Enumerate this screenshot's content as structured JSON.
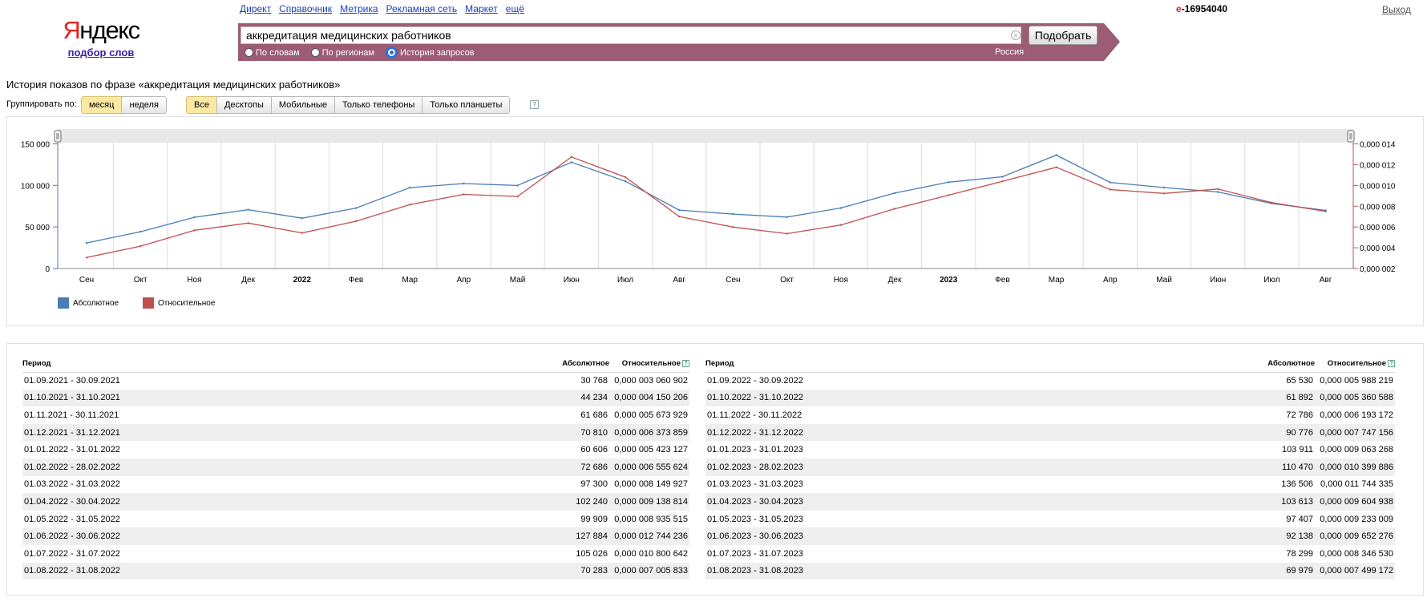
{
  "header": {
    "logo_text": "Яндекс",
    "logo_sub": "подбор слов",
    "nav": [
      "Директ",
      "Справочник",
      "Метрика",
      "Рекламная сеть",
      "Маркет",
      "ещё"
    ],
    "account_first": "е",
    "account_rest": "-16954040",
    "logout": "Выход"
  },
  "search": {
    "query": "аккредитация медицинских работников",
    "button": "Подобрать",
    "modes": [
      "По словам",
      "По регионам",
      "История запросов"
    ],
    "active_mode": "История запросов",
    "region": "Россия",
    "bar_color": "#9b5c74"
  },
  "title": "История показов по фразе «аккредитация медицинских работников»",
  "grouping": {
    "label": "Группировать по:",
    "period_buttons": [
      "месяц",
      "неделя"
    ],
    "active_period": "месяц",
    "device_buttons": [
      "Все",
      "Десктопы",
      "Мобильные",
      "Только телефоны",
      "Только планшеты"
    ],
    "active_device": "Все"
  },
  "chart_data": {
    "type": "line",
    "x": [
      "Сен",
      "Окт",
      "Ноя",
      "Дек",
      "2022",
      "Фев",
      "Мар",
      "Апр",
      "Май",
      "Июн",
      "Июл",
      "Авг",
      "Сен",
      "Окт",
      "Ноя",
      "Дек",
      "2023",
      "Фев",
      "Мар",
      "Апр",
      "Май",
      "Июн",
      "Июл",
      "Авг"
    ],
    "bold_ticks": [
      "2022",
      "2023"
    ],
    "series": [
      {
        "name": "Абсолютное",
        "axis": "left",
        "color": "#4a7bb5",
        "values": [
          30768,
          44234,
          61686,
          70810,
          60606,
          72686,
          97300,
          102240,
          99909,
          127884,
          105026,
          70283,
          65530,
          61892,
          72786,
          90776,
          103911,
          110470,
          136506,
          103613,
          97407,
          92138,
          78299,
          69979
        ]
      },
      {
        "name": "Относительное",
        "axis": "right",
        "color": "#c0504d",
        "values": [
          3.060902e-06,
          4.150206e-06,
          5.673929e-06,
          6.373859e-06,
          5.423127e-06,
          6.555624e-06,
          8.149927e-06,
          9.138814e-06,
          8.935515e-06,
          1.2744236e-05,
          1.0800642e-05,
          7.005833e-06,
          5.988219e-06,
          5.360588e-06,
          6.193172e-06,
          7.747156e-06,
          9.063268e-06,
          1.0399886e-05,
          1.1744335e-05,
          9.604938e-06,
          9.233009e-06,
          9.652276e-06,
          8.34653e-06,
          7.499172e-06
        ]
      }
    ],
    "y_left": {
      "ticks": [
        "0",
        "50 000",
        "100 000",
        "150 000"
      ],
      "range": [
        0,
        150000
      ]
    },
    "y_right": {
      "ticks": [
        "0,000 002",
        "0,000 004",
        "0,000 006",
        "0,000 008",
        "0,000 010",
        "0,000 012",
        "0,000 014"
      ],
      "range": [
        2e-06,
        1.4e-05
      ]
    },
    "legend_placement": "bottom-left",
    "grid": "vertical"
  },
  "table": {
    "headers": [
      "Период",
      "Абсолютное",
      "Относительное"
    ],
    "left_rows": [
      [
        "01.09.2021 - 30.09.2021",
        "30 768",
        "0,000 003 060 902"
      ],
      [
        "01.10.2021 - 31.10.2021",
        "44 234",
        "0,000 004 150 206"
      ],
      [
        "01.11.2021 - 30.11.2021",
        "61 686",
        "0,000 005 673 929"
      ],
      [
        "01.12.2021 - 31.12.2021",
        "70 810",
        "0,000 006 373 859"
      ],
      [
        "01.01.2022 - 31.01.2022",
        "60 606",
        "0,000 005 423 127"
      ],
      [
        "01.02.2022 - 28.02.2022",
        "72 686",
        "0,000 006 555 624"
      ],
      [
        "01.03.2022 - 31.03.2022",
        "97 300",
        "0,000 008 149 927"
      ],
      [
        "01.04.2022 - 30.04.2022",
        "102 240",
        "0,000 009 138 814"
      ],
      [
        "01.05.2022 - 31.05.2022",
        "99 909",
        "0,000 008 935 515"
      ],
      [
        "01.06.2022 - 30.06.2022",
        "127 884",
        "0,000 012 744 236"
      ],
      [
        "01.07.2022 - 31.07.2022",
        "105 026",
        "0,000 010 800 642"
      ],
      [
        "01.08.2022 - 31.08.2022",
        "70 283",
        "0,000 007 005 833"
      ]
    ],
    "right_rows": [
      [
        "01.09.2022 - 30.09.2022",
        "65 530",
        "0,000 005 988 219"
      ],
      [
        "01.10.2022 - 31.10.2022",
        "61 892",
        "0,000 005 360 588"
      ],
      [
        "01.11.2022 - 30.11.2022",
        "72 786",
        "0,000 006 193 172"
      ],
      [
        "01.12.2022 - 31.12.2022",
        "90 776",
        "0,000 007 747 156"
      ],
      [
        "01.01.2023 - 31.01.2023",
        "103 911",
        "0,000 009 063 268"
      ],
      [
        "01.02.2023 - 28.02.2023",
        "110 470",
        "0,000 010 399 886"
      ],
      [
        "01.03.2023 - 31.03.2023",
        "136 506",
        "0,000 011 744 335"
      ],
      [
        "01.04.2023 - 30.04.2023",
        "103 613",
        "0,000 009 604 938"
      ],
      [
        "01.05.2023 - 31.05.2023",
        "97 407",
        "0,000 009 233 009"
      ],
      [
        "01.06.2023 - 30.06.2023",
        "92 138",
        "0,000 009 652 276"
      ],
      [
        "01.07.2023 - 31.07.2023",
        "78 299",
        "0,000 008 346 530"
      ],
      [
        "01.08.2023 - 31.08.2023",
        "69 979",
        "0,000 007 499 172"
      ]
    ]
  }
}
